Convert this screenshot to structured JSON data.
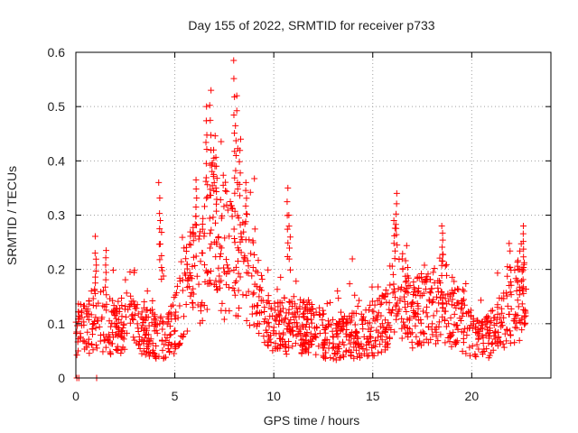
{
  "chart_data": {
    "type": "scatter",
    "title": "Day 155 of 2022, SRMTID for receiver p733",
    "xlabel": "GPS time / hours",
    "ylabel": "SRMTID / TECUs",
    "xlim": [
      0,
      24
    ],
    "ylim": [
      0,
      0.6
    ],
    "x_ticks": [
      0,
      5,
      10,
      15,
      20
    ],
    "y_ticks": [
      0,
      0.1,
      0.2,
      0.3,
      0.4,
      0.5,
      0.6
    ],
    "x_tick_labels": [
      "0",
      "5",
      "10",
      "15",
      "20"
    ],
    "y_tick_labels": [
      "0",
      "0.1",
      "0.2",
      "0.3",
      "0.4",
      "0.5",
      "0.6"
    ],
    "grid": true,
    "marker": "+",
    "series_color": "#ff0000",
    "trend": {
      "x": [
        0,
        0.5,
        1,
        1.5,
        2,
        3,
        4,
        4.5,
        5,
        5.5,
        6,
        6.5,
        7,
        7.5,
        8,
        8.5,
        9,
        9.5,
        10,
        11,
        12,
        13,
        13.5,
        14,
        15,
        15.5,
        16,
        16.5,
        17,
        18,
        18.5,
        19,
        19.5,
        20,
        20.5,
        21,
        21.5,
        22,
        22.5,
        22.75
      ],
      "y": [
        0.09,
        0.085,
        0.12,
        0.1,
        0.09,
        0.1,
        0.08,
        0.07,
        0.1,
        0.16,
        0.19,
        0.23,
        0.27,
        0.24,
        0.25,
        0.22,
        0.2,
        0.1,
        0.09,
        0.1,
        0.09,
        0.07,
        0.075,
        0.08,
        0.09,
        0.1,
        0.15,
        0.15,
        0.12,
        0.13,
        0.15,
        0.12,
        0.11,
        0.08,
        0.07,
        0.08,
        0.1,
        0.14,
        0.15,
        0.12
      ]
    },
    "spikes": [
      {
        "x": 1.0,
        "y": 0.23
      },
      {
        "x": 1.5,
        "y": 0.235
      },
      {
        "x": 4.2,
        "y": 0.36
      },
      {
        "x": 4.3,
        "y": 0.29
      },
      {
        "x": 6.1,
        "y": 0.365
      },
      {
        "x": 6.6,
        "y": 0.5
      },
      {
        "x": 6.8,
        "y": 0.53
      },
      {
        "x": 7.0,
        "y": 0.42
      },
      {
        "x": 8.0,
        "y": 0.585
      },
      {
        "x": 8.1,
        "y": 0.52
      },
      {
        "x": 8.3,
        "y": 0.44
      },
      {
        "x": 8.6,
        "y": 0.36
      },
      {
        "x": 10.7,
        "y": 0.35
      },
      {
        "x": 10.8,
        "y": 0.3
      },
      {
        "x": 16.2,
        "y": 0.34
      },
      {
        "x": 16.1,
        "y": 0.29
      },
      {
        "x": 18.5,
        "y": 0.28
      },
      {
        "x": 22.6,
        "y": 0.28
      }
    ]
  }
}
